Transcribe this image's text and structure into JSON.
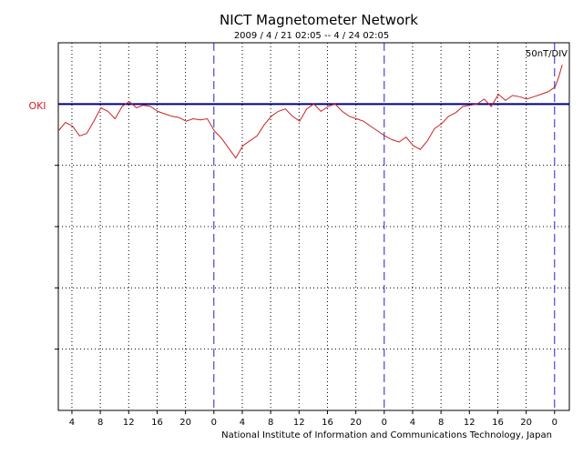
{
  "chart_data": {
    "type": "line",
    "title": "NICT Magnetometer Network",
    "subtitle": "2009 / 4 / 21   02:05 --  4 / 24   02:05",
    "scale_label": "50nT/DIV",
    "station_label": "OKI",
    "credit": "National Institute of Information and Communications Technology, Japan",
    "x_unit": "hours since start",
    "xlim": [
      0,
      72
    ],
    "ylim": [
      -250,
      50
    ],
    "ylabel": "",
    "grid": true,
    "x_ticks": [
      {
        "x": 1.92,
        "label": "4"
      },
      {
        "x": 5.92,
        "label": "8"
      },
      {
        "x": 9.92,
        "label": "12"
      },
      {
        "x": 13.92,
        "label": "16"
      },
      {
        "x": 17.92,
        "label": "20"
      },
      {
        "x": 21.92,
        "label": "0",
        "day_boundary": true
      },
      {
        "x": 25.92,
        "label": "4"
      },
      {
        "x": 29.92,
        "label": "8"
      },
      {
        "x": 33.92,
        "label": "12"
      },
      {
        "x": 37.92,
        "label": "16"
      },
      {
        "x": 41.92,
        "label": "20"
      },
      {
        "x": 45.92,
        "label": "0",
        "day_boundary": true
      },
      {
        "x": 49.92,
        "label": "4"
      },
      {
        "x": 53.92,
        "label": "8"
      },
      {
        "x": 57.92,
        "label": "12"
      },
      {
        "x": 61.92,
        "label": "16"
      },
      {
        "x": 65.92,
        "label": "20"
      },
      {
        "x": 69.92,
        "label": "0",
        "day_boundary": true
      }
    ],
    "baseline_y": 0,
    "series": [
      {
        "name": "OKI",
        "color": "#cc2222",
        "x": [
          0,
          1,
          2,
          3,
          4,
          5,
          6,
          7,
          8,
          9,
          10,
          11,
          12,
          13,
          14,
          15,
          16,
          17,
          18,
          19,
          20,
          21,
          22,
          23,
          24,
          25,
          26,
          27,
          28,
          29,
          30,
          31,
          32,
          33,
          34,
          35,
          36,
          37,
          38,
          39,
          40,
          41,
          42,
          43,
          44,
          45,
          46,
          47,
          48,
          49,
          50,
          51,
          52,
          53,
          54,
          55,
          56,
          57,
          58,
          59,
          60,
          61,
          62,
          63,
          64,
          65,
          66,
          67,
          68,
          69,
          70,
          70.5,
          71
        ],
        "y": [
          -22,
          -15,
          -18,
          -26,
          -24,
          -14,
          -3,
          -6,
          -12,
          -2,
          2,
          -3,
          -1,
          -2,
          -6,
          -8,
          -10,
          -11,
          -14,
          -12,
          -13,
          -12,
          -22,
          -28,
          -36,
          -44,
          -34,
          -30,
          -26,
          -17,
          -10,
          -6,
          -4,
          -10,
          -14,
          -4,
          0,
          -6,
          -2,
          0,
          -6,
          -10,
          -12,
          -14,
          -18,
          -22,
          -26,
          -29,
          -31,
          -27,
          -34,
          -37,
          -30,
          -20,
          -16,
          -10,
          -7,
          -2,
          -1,
          0,
          4,
          -2,
          8,
          3,
          7,
          6,
          4,
          6,
          8,
          10,
          14,
          22,
          32
        ]
      }
    ]
  }
}
